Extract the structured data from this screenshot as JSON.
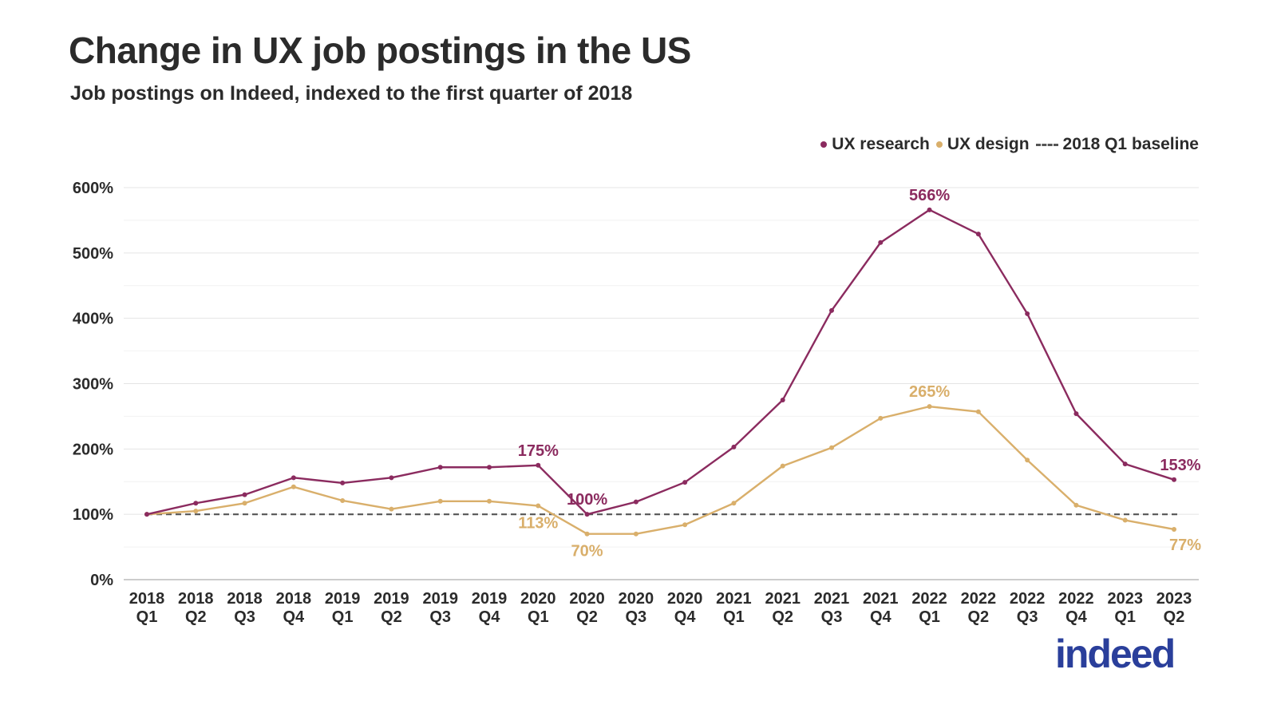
{
  "header": {
    "title": "Change in UX job postings in the US",
    "subtitle": "Job postings on Indeed, indexed to the first quarter of 2018"
  },
  "logo": {
    "text": "indeed",
    "color": "#2a3f9b"
  },
  "chart_data": {
    "type": "line",
    "title": "Change in UX job postings in the US",
    "subtitle": "Job postings on Indeed, indexed to the first quarter of 2018",
    "categories": [
      [
        "2018",
        "Q1"
      ],
      [
        "2018",
        "Q2"
      ],
      [
        "2018",
        "Q3"
      ],
      [
        "2018",
        "Q4"
      ],
      [
        "2019",
        "Q1"
      ],
      [
        "2019",
        "Q2"
      ],
      [
        "2019",
        "Q3"
      ],
      [
        "2019",
        "Q4"
      ],
      [
        "2020",
        "Q1"
      ],
      [
        "2020",
        "Q2"
      ],
      [
        "2020",
        "Q3"
      ],
      [
        "2020",
        "Q4"
      ],
      [
        "2021",
        "Q1"
      ],
      [
        "2021",
        "Q2"
      ],
      [
        "2021",
        "Q3"
      ],
      [
        "2021",
        "Q4"
      ],
      [
        "2022",
        "Q1"
      ],
      [
        "2022",
        "Q2"
      ],
      [
        "2022",
        "Q3"
      ],
      [
        "2022",
        "Q4"
      ],
      [
        "2023",
        "Q1"
      ],
      [
        "2023",
        "Q2"
      ]
    ],
    "ylim": [
      0,
      600
    ],
    "yticks": [
      "0%",
      "100%",
      "200%",
      "300%",
      "400%",
      "500%",
      "600%"
    ],
    "grid": true,
    "legend_position": "top-right",
    "legend": [
      "UX research",
      "UX design",
      "2018 Q1 baseline"
    ],
    "series": [
      {
        "name": "UX research",
        "color": "#8b2b5f",
        "values": [
          100,
          117,
          130,
          156,
          148,
          156,
          172,
          172,
          175,
          100,
          119,
          149,
          203,
          275,
          412,
          516,
          566,
          529,
          407,
          254,
          177,
          153
        ],
        "labels": [
          {
            "index": 8,
            "text": "175%",
            "pos": "above"
          },
          {
            "index": 9,
            "text": "100%",
            "pos": "above"
          },
          {
            "index": 16,
            "text": "566%",
            "pos": "above"
          },
          {
            "index": 21,
            "text": "153%",
            "pos": "above-right"
          }
        ]
      },
      {
        "name": "UX design",
        "color": "#d9af6b",
        "values": [
          100,
          105,
          117,
          142,
          121,
          108,
          120,
          120,
          113,
          70,
          70,
          84,
          117,
          174,
          202,
          247,
          265,
          257,
          183,
          114,
          91,
          77
        ],
        "labels": [
          {
            "index": 8,
            "text": "113%",
            "pos": "below"
          },
          {
            "index": 9,
            "text": "70%",
            "pos": "below"
          },
          {
            "index": 16,
            "text": "265%",
            "pos": "above"
          },
          {
            "index": 21,
            "text": "77%",
            "pos": "below-right"
          }
        ]
      }
    ],
    "baseline": {
      "name": "2018 Q1 baseline",
      "value": 100,
      "color": "#555555"
    }
  }
}
